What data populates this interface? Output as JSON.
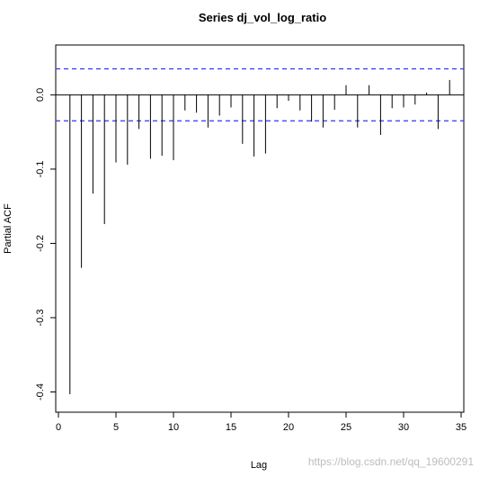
{
  "chart_data": {
    "type": "bar",
    "title": "Series  dj_vol_log_ratio",
    "xlabel": "Lag",
    "ylabel": "Partial ACF",
    "xlim": [
      0,
      35
    ],
    "ylim": [
      -0.42,
      0.055
    ],
    "x_ticks": [
      0,
      5,
      10,
      15,
      20,
      25,
      30,
      35
    ],
    "y_ticks": [
      -0.4,
      -0.3,
      -0.2,
      -0.1,
      0.0
    ],
    "y_tick_labels": [
      "-0.4",
      "-0.3",
      "-0.2",
      "-0.1",
      "0.0"
    ],
    "confidence_bound": 0.035,
    "bound_color": "#3333ff",
    "lags": [
      1,
      2,
      3,
      4,
      5,
      6,
      7,
      8,
      9,
      10,
      11,
      12,
      13,
      14,
      15,
      16,
      17,
      18,
      19,
      20,
      21,
      22,
      23,
      24,
      25,
      26,
      27,
      28,
      29,
      30,
      31,
      32,
      33,
      34
    ],
    "values": [
      -0.403,
      -0.233,
      -0.133,
      -0.174,
      -0.091,
      -0.094,
      -0.046,
      -0.086,
      -0.082,
      -0.088,
      -0.021,
      -0.024,
      -0.044,
      -0.028,
      -0.017,
      -0.066,
      -0.083,
      -0.079,
      -0.018,
      -0.008,
      -0.021,
      -0.036,
      -0.044,
      -0.02,
      0.013,
      -0.044,
      0.013,
      -0.054,
      -0.018,
      -0.017,
      -0.013,
      0.003,
      -0.046,
      0.02
    ]
  },
  "watermark": "https://blog.csdn.net/qq_19600291"
}
